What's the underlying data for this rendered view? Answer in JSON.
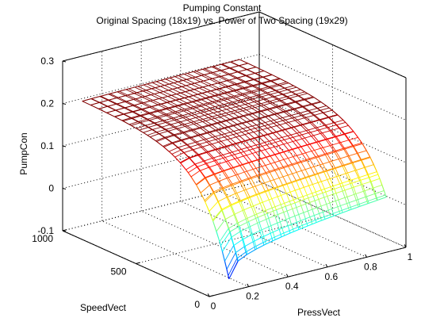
{
  "chart_data": {
    "type": "surface-mesh",
    "title": "Pumping Constant",
    "subtitle": "Original Spacing (18x19) vs. Power of Two Spacing (19x29)",
    "xlabel": "PressVect",
    "ylabel": "SpeedVect",
    "zlabel": "PumpCon",
    "xlim": [
      0,
      1
    ],
    "ylim": [
      0,
      1000
    ],
    "zlim": [
      -0.1,
      0.3
    ],
    "xticks": [
      0,
      0.2,
      0.4,
      0.6,
      0.8,
      1
    ],
    "yticks": [
      0,
      500,
      1000
    ],
    "zticks": [
      -0.1,
      0,
      0.1,
      0.2,
      0.3
    ],
    "xtick_labels": [
      "0",
      "0.2",
      "0.4",
      "0.6",
      "0.8",
      "1"
    ],
    "ytick_labels": [
      "0",
      "500",
      "1000"
    ],
    "ztick_labels": [
      "-0.1",
      "0",
      "0.1",
      "0.2",
      "0.3"
    ],
    "grid": true,
    "colormap": "jet",
    "series": [
      {
        "name": "Original Spacing (18x19)",
        "grid_size": [
          18,
          19
        ],
        "press_range": [
          0.1,
          0.9
        ],
        "speed_range": [
          0,
          1000
        ],
        "corner_values": {
          "low_press_low_speed": -0.07,
          "high_press_low_speed": 0.03,
          "low_press_high_speed": 0.195,
          "high_press_high_speed": 0.2
        }
      },
      {
        "name": "Power of Two Spacing (19x29)",
        "grid_size": [
          19,
          29
        ],
        "press_range": [
          0.1,
          0.9
        ],
        "speed_range": [
          0,
          1000
        ],
        "corner_values": {
          "low_press_low_speed": -0.07,
          "high_press_low_speed": 0.03,
          "low_press_high_speed": 0.195,
          "high_press_high_speed": 0.2
        }
      }
    ]
  }
}
